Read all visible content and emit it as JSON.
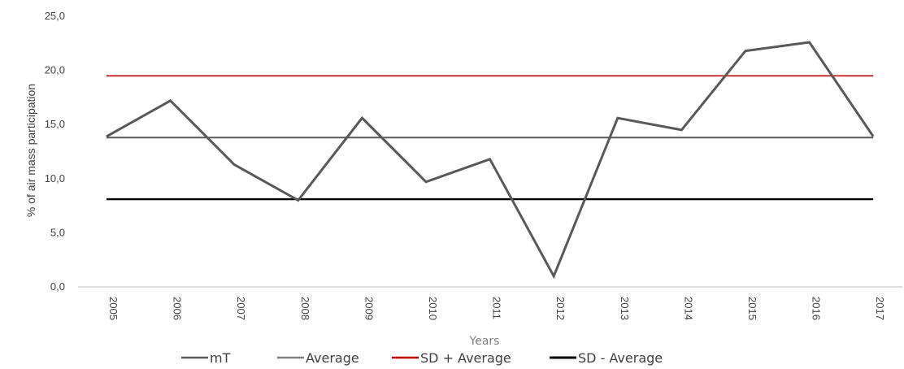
{
  "chart_data": {
    "type": "line",
    "xlabel": "Years",
    "ylabel": "% of air mass participation",
    "x": [
      "2005",
      "2006",
      "2007",
      "2008",
      "2009",
      "2010",
      "2011",
      "2012",
      "2013",
      "2014",
      "2015",
      "2016",
      "2017"
    ],
    "ylim": [
      0,
      25
    ],
    "yticks": [
      "0,0",
      "5,0",
      "10,0",
      "15,0",
      "20,0",
      "25,0"
    ],
    "ytick_values": [
      0,
      5,
      10,
      15,
      20,
      25
    ],
    "grid": false,
    "legend_position": "bottom",
    "series": [
      {
        "name": "mT",
        "color": "#595959",
        "values": [
          13.9,
          17.2,
          11.3,
          8.0,
          15.6,
          9.7,
          11.8,
          1.0,
          15.6,
          14.5,
          21.8,
          22.6,
          13.9
        ]
      },
      {
        "name": "Average",
        "color": "#595959",
        "values": [
          13.8,
          13.8,
          13.8,
          13.8,
          13.8,
          13.8,
          13.8,
          13.8,
          13.8,
          13.8,
          13.8,
          13.8,
          13.8
        ]
      },
      {
        "name": "SD + Average",
        "color": "#c00000",
        "values": [
          19.5,
          19.5,
          19.5,
          19.5,
          19.5,
          19.5,
          19.5,
          19.5,
          19.5,
          19.5,
          19.5,
          19.5,
          19.5
        ]
      },
      {
        "name": "SD - Average",
        "color": "#000000",
        "values": [
          8.1,
          8.1,
          8.1,
          8.1,
          8.1,
          8.1,
          8.1,
          8.1,
          8.1,
          8.1,
          8.1,
          8.1,
          8.1
        ]
      }
    ],
    "legend_colors": [
      "#595959",
      "#7f7f7f",
      "#c00000",
      "#000000"
    ]
  }
}
